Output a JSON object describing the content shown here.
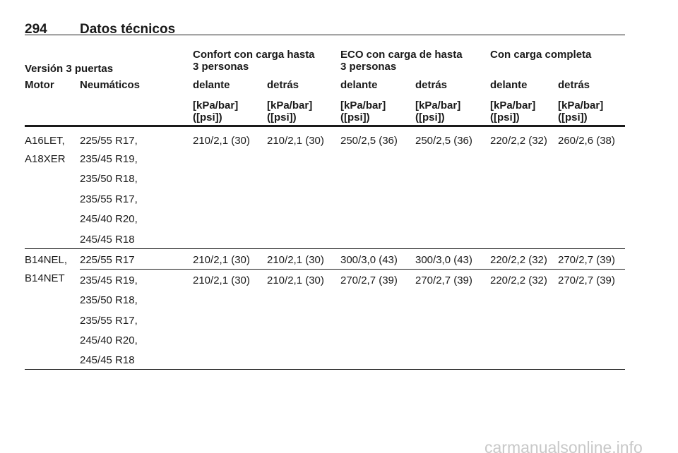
{
  "header": {
    "page_number": "294",
    "title": "Datos técnicos"
  },
  "table": {
    "title": "Versión 3 puertas",
    "groups": [
      [
        "Confort con carga hasta",
        "3 personas"
      ],
      [
        "ECO con carga de hasta",
        "3 personas"
      ],
      [
        "Con carga completa"
      ]
    ],
    "columns": [
      "Motor",
      "Neumáticos",
      "delante",
      "detrás",
      "delante",
      "detrás",
      "delante",
      "detrás"
    ],
    "units": [
      [
        "[kPa/bar]",
        "([psi])"
      ],
      [
        "[kPa/bar]",
        "([psi])"
      ],
      [
        "[kPa/bar]",
        "([psi])"
      ],
      [
        "[kPa/bar]",
        "([psi])"
      ],
      [
        "[kPa/bar]",
        "([psi])"
      ],
      [
        "[kPa/bar]",
        "([psi])"
      ]
    ],
    "sections": [
      {
        "motor": [
          "A16LET,",
          "A18XER"
        ],
        "entries": [
          {
            "tires": [
              "225/55 R17,",
              "235/45 R19,",
              "235/50 R18,",
              "235/55 R17,",
              "245/40 R20,",
              "245/45 R18"
            ],
            "pressures": [
              "210/2,1 (30)",
              "210/2,1 (30)",
              "250/2,5 (36)",
              "250/2,5 (36)",
              "220/2,2 (32)",
              "260/2,6 (38)"
            ]
          }
        ]
      },
      {
        "motor": [
          "B14NEL,",
          "B14NET"
        ],
        "entries": [
          {
            "tires": [
              "225/55 R17"
            ],
            "pressures": [
              "210/2,1 (30)",
              "210/2,1 (30)",
              "300/3,0 (43)",
              "300/3,0 (43)",
              "220/2,2 (32)",
              "270/2,7 (39)"
            ]
          },
          {
            "tires": [
              "235/45 R19,",
              "235/50 R18,",
              "235/55 R17,",
              "245/40 R20,",
              "245/45 R18"
            ],
            "pressures": [
              "210/2,1 (30)",
              "210/2,1 (30)",
              "270/2,7 (39)",
              "270/2,7 (39)",
              "220/2,2 (32)",
              "270/2,7 (39)"
            ]
          }
        ]
      }
    ]
  },
  "watermark": "carmanualsonline.info"
}
